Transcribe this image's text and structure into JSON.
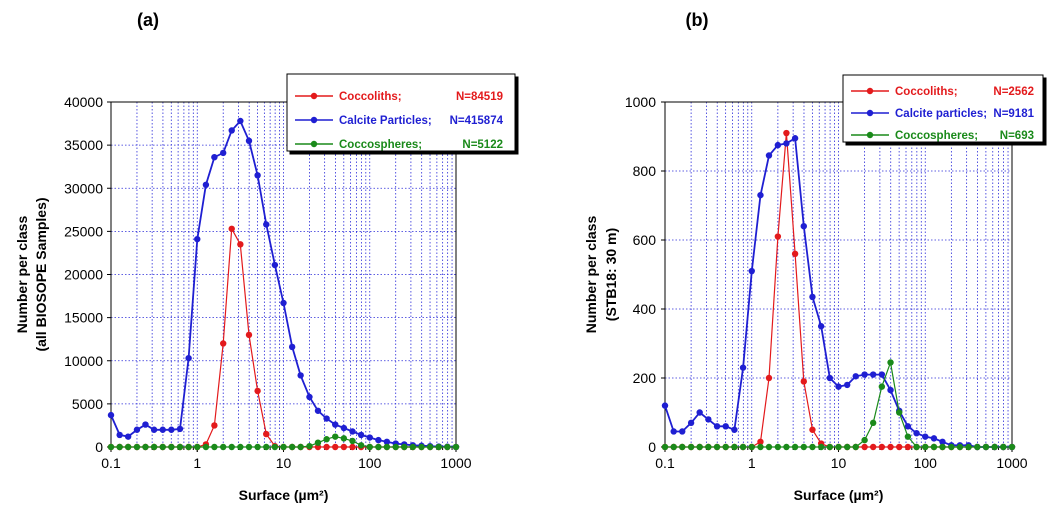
{
  "chart_data": [
    {
      "type": "line",
      "panel_label": "(a)",
      "xlabel": "Surface (µm²)",
      "ylabel_lines": [
        "Number per class",
        "(all BIOSOPE Samples)"
      ],
      "xscale": "log",
      "xlim": [
        0.1,
        1000
      ],
      "ylim": [
        0,
        40000
      ],
      "xticks": [
        0.1,
        1,
        10,
        100,
        1000
      ],
      "xtick_labels": [
        "0.1",
        "1",
        "10",
        "100",
        "1000"
      ],
      "yticks": [
        0,
        5000,
        10000,
        15000,
        20000,
        25000,
        30000,
        35000,
        40000
      ],
      "ytick_labels": [
        "0",
        "5000",
        "10000",
        "15000",
        "20000",
        "25000",
        "30000",
        "35000",
        "40000"
      ],
      "grid": true,
      "legend_position": "top-right",
      "series": [
        {
          "name": "Coccoliths;",
          "n_label": "N=84519",
          "color": "#e31a1c",
          "x": [
            0.1,
            0.126,
            0.158,
            0.2,
            0.251,
            0.316,
            0.398,
            0.501,
            0.631,
            0.794,
            1,
            1.26,
            1.58,
            2,
            2.51,
            3.16,
            3.98,
            5.01,
            6.31,
            7.94,
            10,
            12.6,
            15.8,
            20,
            25.1,
            31.6,
            39.8,
            50.1,
            63.1,
            79.4,
            100,
            126,
            158,
            200,
            251,
            316,
            398,
            501,
            631,
            794,
            1000
          ],
          "y": [
            0,
            0,
            0,
            0,
            0,
            0,
            0,
            0,
            0,
            0,
            0,
            300,
            2500,
            12000,
            25300,
            23500,
            13000,
            6500,
            1500,
            100,
            0,
            0,
            0,
            0,
            0,
            0,
            0,
            0,
            0,
            0,
            0,
            0,
            0,
            0,
            0,
            0,
            0,
            0,
            0,
            0,
            0
          ]
        },
        {
          "name": "Calcite Particles;",
          "n_label": "N=415874",
          "color": "#1f1fd2",
          "x": [
            0.1,
            0.126,
            0.158,
            0.2,
            0.251,
            0.316,
            0.398,
            0.501,
            0.631,
            0.794,
            1,
            1.26,
            1.58,
            2,
            2.51,
            3.16,
            3.98,
            5.01,
            6.31,
            7.94,
            10,
            12.6,
            15.8,
            20,
            25.1,
            31.6,
            39.8,
            50.1,
            63.1,
            79.4,
            100,
            126,
            158,
            200,
            251,
            316,
            398,
            501,
            631,
            794,
            1000
          ],
          "y": [
            3700,
            1400,
            1200,
            2000,
            2600,
            2000,
            2000,
            2000,
            2100,
            10300,
            24100,
            30400,
            33600,
            34100,
            36700,
            37800,
            35500,
            31500,
            25800,
            21100,
            16700,
            11600,
            8300,
            5800,
            4200,
            3300,
            2600,
            2200,
            1800,
            1400,
            1100,
            800,
            600,
            400,
            300,
            200,
            150,
            100,
            50,
            30,
            0
          ]
        },
        {
          "name": "Coccospheres;",
          "n_label": "N=5122",
          "color": "#1a8a1a",
          "x": [
            0.1,
            0.126,
            0.158,
            0.2,
            0.251,
            0.316,
            0.398,
            0.501,
            0.631,
            0.794,
            1,
            1.26,
            1.58,
            2,
            2.51,
            3.16,
            3.98,
            5.01,
            6.31,
            7.94,
            10,
            12.6,
            15.8,
            20,
            25.1,
            31.6,
            39.8,
            50.1,
            63.1,
            79.4,
            100,
            126,
            158,
            200,
            251,
            316,
            398,
            501,
            631,
            794,
            1000
          ],
          "y": [
            0,
            0,
            0,
            0,
            0,
            0,
            0,
            0,
            0,
            0,
            0,
            0,
            0,
            0,
            0,
            0,
            0,
            0,
            0,
            0,
            0,
            0,
            0,
            100,
            500,
            900,
            1200,
            1000,
            700,
            200,
            0,
            0,
            0,
            0,
            0,
            0,
            0,
            0,
            0,
            0,
            0
          ]
        }
      ]
    },
    {
      "type": "line",
      "panel_label": "(b)",
      "xlabel": "Surface (µm²)",
      "ylabel_lines": [
        "Number per class",
        "(STB18: 30 m)"
      ],
      "xscale": "log",
      "xlim": [
        0.1,
        1000
      ],
      "ylim": [
        0,
        1000
      ],
      "xticks": [
        0.1,
        1,
        10,
        100,
        1000
      ],
      "xtick_labels": [
        "0.1",
        "1",
        "10",
        "100",
        "1000"
      ],
      "yticks": [
        0,
        200,
        400,
        600,
        800,
        1000
      ],
      "ytick_labels": [
        "0",
        "200",
        "400",
        "600",
        "800",
        "1000"
      ],
      "grid": true,
      "legend_position": "top-right",
      "series": [
        {
          "name": "Coccoliths;",
          "n_label": "N=2562",
          "color": "#e31a1c",
          "x": [
            0.1,
            0.126,
            0.158,
            0.2,
            0.251,
            0.316,
            0.398,
            0.501,
            0.631,
            0.794,
            1,
            1.26,
            1.58,
            2,
            2.51,
            3.16,
            3.98,
            5.01,
            6.31,
            7.94,
            10,
            12.6,
            15.8,
            20,
            25.1,
            31.6,
            39.8,
            50.1,
            63.1,
            79.4,
            100,
            126,
            158,
            200,
            251,
            316,
            398,
            501,
            631,
            794,
            1000
          ],
          "y": [
            0,
            0,
            0,
            0,
            0,
            0,
            0,
            0,
            0,
            0,
            0,
            15,
            200,
            610,
            910,
            560,
            190,
            50,
            10,
            0,
            0,
            0,
            0,
            0,
            0,
            0,
            0,
            0,
            0,
            0,
            0,
            0,
            0,
            0,
            0,
            0,
            0,
            0,
            0,
            0,
            0
          ]
        },
        {
          "name": "Calcite particles;",
          "n_label": "N=9181",
          "color": "#1f1fd2",
          "x": [
            0.1,
            0.126,
            0.158,
            0.2,
            0.251,
            0.316,
            0.398,
            0.501,
            0.631,
            0.794,
            1,
            1.26,
            1.58,
            2,
            2.51,
            3.16,
            3.98,
            5.01,
            6.31,
            7.94,
            10,
            12.6,
            15.8,
            20,
            25.1,
            31.6,
            39.8,
            50.1,
            63.1,
            79.4,
            100,
            126,
            158,
            200,
            251,
            316,
            398,
            501,
            631,
            794,
            1000
          ],
          "y": [
            120,
            45,
            45,
            70,
            100,
            80,
            60,
            60,
            50,
            230,
            510,
            730,
            845,
            875,
            880,
            895,
            640,
            435,
            350,
            200,
            175,
            180,
            205,
            210,
            210,
            210,
            165,
            105,
            60,
            40,
            30,
            25,
            15,
            5,
            5,
            5,
            0,
            0,
            0,
            0,
            0
          ]
        },
        {
          "name": "Coccospheres;",
          "n_label": "N=693",
          "color": "#1a8a1a",
          "x": [
            0.1,
            0.126,
            0.158,
            0.2,
            0.251,
            0.316,
            0.398,
            0.501,
            0.631,
            0.794,
            1,
            1.26,
            1.58,
            2,
            2.51,
            3.16,
            3.98,
            5.01,
            6.31,
            7.94,
            10,
            12.6,
            15.8,
            20,
            25.1,
            31.6,
            39.8,
            50.1,
            63.1,
            79.4,
            100,
            126,
            158,
            200,
            251,
            316,
            398,
            501,
            631,
            794,
            1000
          ],
          "y": [
            0,
            0,
            0,
            0,
            0,
            0,
            0,
            0,
            0,
            0,
            0,
            0,
            0,
            0,
            0,
            0,
            0,
            0,
            0,
            0,
            0,
            0,
            0,
            20,
            70,
            175,
            245,
            100,
            30,
            0,
            0,
            0,
            0,
            0,
            0,
            0,
            0,
            0,
            0,
            0,
            0
          ]
        }
      ]
    }
  ]
}
